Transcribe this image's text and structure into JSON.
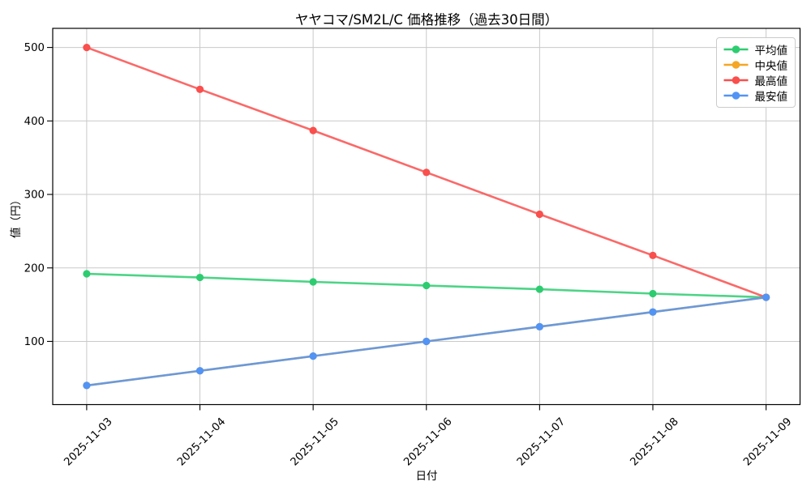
{
  "chart_data": {
    "type": "line",
    "title": "ヤヤコマ/SM2L/C 価格推移（過去30日間）",
    "xlabel": "日付",
    "ylabel": "値（円）",
    "categories": [
      "2025-11-03",
      "2025-11-04",
      "2025-11-05",
      "2025-11-06",
      "2025-11-07",
      "2025-11-08",
      "2025-11-09"
    ],
    "series": [
      {
        "id": "mean",
        "name": "平均値",
        "color": "#2ecc71",
        "values": [
          192,
          187,
          181,
          176,
          171,
          165,
          160
        ]
      },
      {
        "id": "median",
        "name": "中央値",
        "color": "#f5a623",
        "values": [
          40,
          60,
          80,
          100,
          120,
          140,
          160
        ]
      },
      {
        "id": "max",
        "name": "最高値",
        "color": "#f94f4d",
        "values": [
          500,
          443,
          387,
          330,
          273,
          217,
          160
        ]
      },
      {
        "id": "min",
        "name": "最安値",
        "color": "#5294f5",
        "values": [
          40,
          60,
          80,
          100,
          120,
          140,
          160
        ]
      }
    ],
    "yticks": [
      100,
      200,
      300,
      400,
      500
    ],
    "ylim": [
      14,
      526
    ],
    "grid": true,
    "grid_color": "#c9c9c9",
    "legend_position": "upper right",
    "marker": "circle"
  }
}
